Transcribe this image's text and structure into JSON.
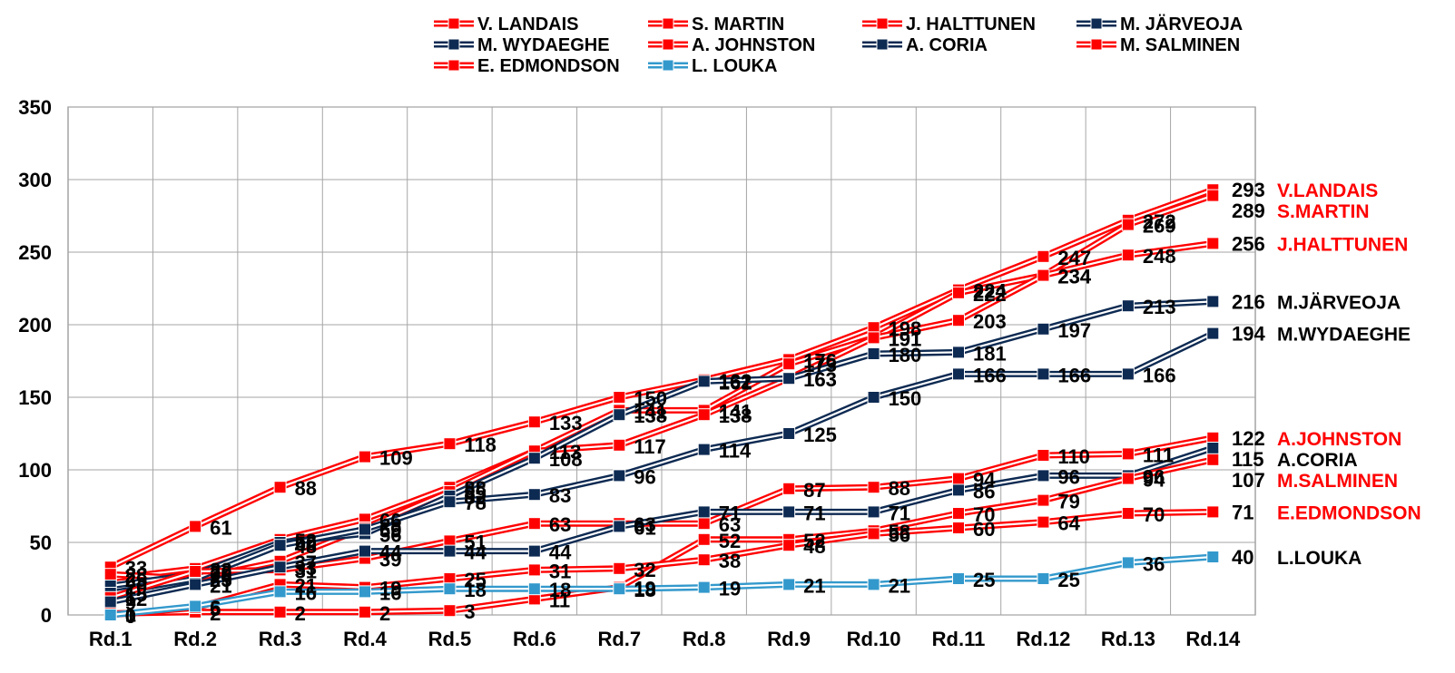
{
  "chart_data": {
    "type": "line",
    "title": "",
    "xlabel": "",
    "ylabel": "",
    "ylim": [
      0,
      350
    ],
    "y_ticks": [
      0,
      50,
      100,
      150,
      200,
      250,
      300,
      350
    ],
    "grid": true,
    "legend_position": "top",
    "categories": [
      "Rd.1",
      "Rd.2",
      "Rd.3",
      "Rd.4",
      "Rd.5",
      "Rd.6",
      "Rd.7",
      "Rd.8",
      "Rd.9",
      "Rd.10",
      "Rd.11",
      "Rd.12",
      "Rd.13",
      "Rd.14"
    ],
    "series": [
      {
        "name": "V. LANDAIS",
        "end_label": "V.LANDAIS",
        "color": "#ff0000",
        "name_color": "#ff0000",
        "values": [
          33,
          61,
          88,
          109,
          118,
          133,
          150,
          162,
          176,
          198,
          224,
          247,
          272,
          293
        ]
      },
      {
        "name": "S. MARTIN",
        "end_label": "S.MARTIN",
        "color": "#ff0000",
        "name_color": "#ff0000",
        "values": [
          25,
          32,
          52,
          66,
          88,
          113,
          141,
          141,
          173,
          191,
          222,
          234,
          269,
          289
        ]
      },
      {
        "name": "J. HALTTUNEN",
        "end_label": "J.HALTTUNEN",
        "color": "#ff0000",
        "name_color": "#ff0000",
        "values": [
          28,
          25,
          37,
          60,
          85,
          113,
          117,
          138,
          163,
          191,
          203,
          234,
          248,
          256
        ]
      },
      {
        "name": "M. JÄRVEOJA",
        "end_label": "M.JÄRVEOJA",
        "color": "#0d2a52",
        "name_color": "#000000",
        "values": [
          20,
          28,
          50,
          56,
          82,
          108,
          138,
          161,
          163,
          180,
          181,
          197,
          213,
          216
        ]
      },
      {
        "name": "M. WYDAEGHE",
        "end_label": "M.WYDAEGHE",
        "color": "#0d2a52",
        "name_color": "#000000",
        "values": [
          15,
          25,
          48,
          59,
          78,
          83,
          96,
          114,
          125,
          150,
          166,
          166,
          166,
          194
        ]
      },
      {
        "name": "A. JOHNSTON",
        "end_label": "A.JOHNSTON",
        "color": "#ff0000",
        "name_color": "#ff0000",
        "values": [
          12,
          30,
          31,
          39,
          51,
          63,
          63,
          63,
          87,
          88,
          94,
          110,
          111,
          122
        ]
      },
      {
        "name": "A. CORIA",
        "end_label": "A.CORIA",
        "color": "#0d2a52",
        "name_color": "#000000",
        "values": [
          9,
          21,
          33,
          44,
          44,
          44,
          61,
          71,
          71,
          71,
          86,
          96,
          96,
          115
        ]
      },
      {
        "name": "M. SALMINEN",
        "end_label": "M.SALMINEN",
        "color": "#ff0000",
        "name_color": "#ff0000",
        "values": [
          1,
          2,
          2,
          2,
          3,
          11,
          19,
          52,
          52,
          58,
          70,
          79,
          94,
          107
        ]
      },
      {
        "name": "E. EDMONDSON",
        "end_label": "E.EDMONDSON",
        "color": "#ff0000",
        "name_color": "#ff0000",
        "values": [
          0,
          5,
          21,
          19,
          25,
          31,
          32,
          38,
          48,
          56,
          60,
          64,
          70,
          71
        ]
      },
      {
        "name": "L. LOUKA",
        "end_label": "L.LOUKA",
        "color": "#3399cc",
        "name_color": "#000000",
        "values": [
          0,
          6,
          16,
          16,
          18,
          18,
          18,
          19,
          21,
          21,
          25,
          25,
          36,
          40
        ]
      }
    ]
  }
}
